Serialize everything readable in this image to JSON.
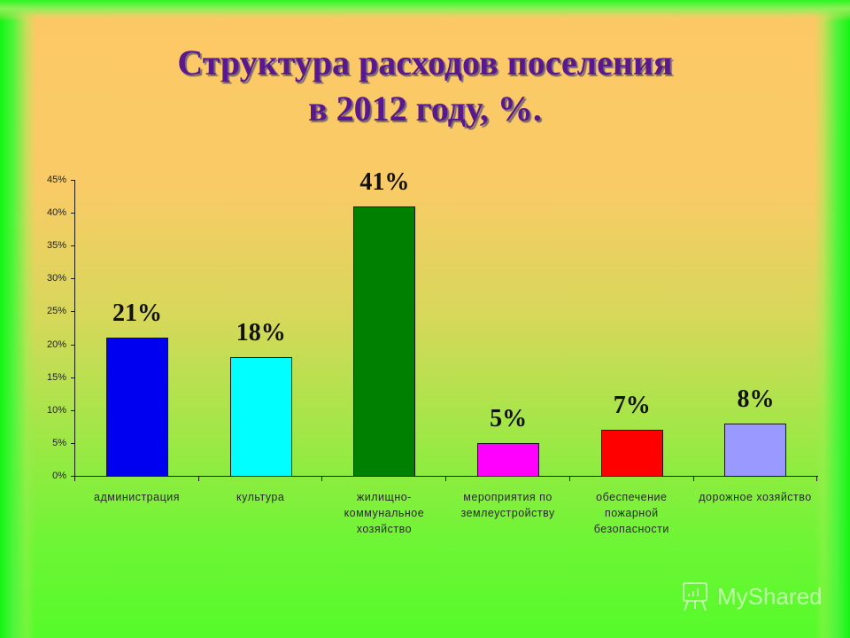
{
  "title": {
    "line1": "Структура расходов поселения",
    "line2": "в 2012 году, %."
  },
  "watermark": {
    "label": "MyShared",
    "icon": "presentation-board-icon"
  },
  "y_axis": {
    "ticks": [
      "0%",
      "5%",
      "10%",
      "15%",
      "20%",
      "25%",
      "30%",
      "35%",
      "40%",
      "45%"
    ]
  },
  "bars": [
    {
      "category": "администрация",
      "value": 21,
      "label": "21%",
      "color": "#0000f0"
    },
    {
      "category": "культура",
      "value": 18,
      "label": "18%",
      "color": "#00ffff"
    },
    {
      "category": "жилищно-коммунальное хозяйство",
      "value": 41,
      "label": "41%",
      "color": "#008000"
    },
    {
      "category": "мероприятия по землеустройству",
      "value": 5,
      "label": "5%",
      "color": "#ff00ff"
    },
    {
      "category": "обеспечение пожарной безопасности",
      "value": 7,
      "label": "7%",
      "color": "#ff0000"
    },
    {
      "category": "дорожное хозяйство",
      "value": 8,
      "label": "8%",
      "color": "#9999ff"
    }
  ],
  "chart_data": {
    "type": "bar",
    "title": "Структура расходов поселения в 2012 году, %.",
    "categories": [
      "администрация",
      "культура",
      "жилищно-коммунальное хозяйство",
      "мероприятия по землеустройству",
      "обеспечение пожарной безопасности",
      "дорожное хозяйство"
    ],
    "values": [
      21,
      18,
      41,
      5,
      7,
      8
    ],
    "data_labels": [
      "21%",
      "18%",
      "41%",
      "5%",
      "7%",
      "8%"
    ],
    "colors": [
      "#0000f0",
      "#00ffff",
      "#008000",
      "#ff00ff",
      "#ff0000",
      "#9999ff"
    ],
    "xlabel": "",
    "ylabel": "",
    "ylim": [
      0,
      45
    ],
    "ytick_step": 5,
    "ytick_format": "%",
    "grid": false,
    "legend": "none"
  }
}
